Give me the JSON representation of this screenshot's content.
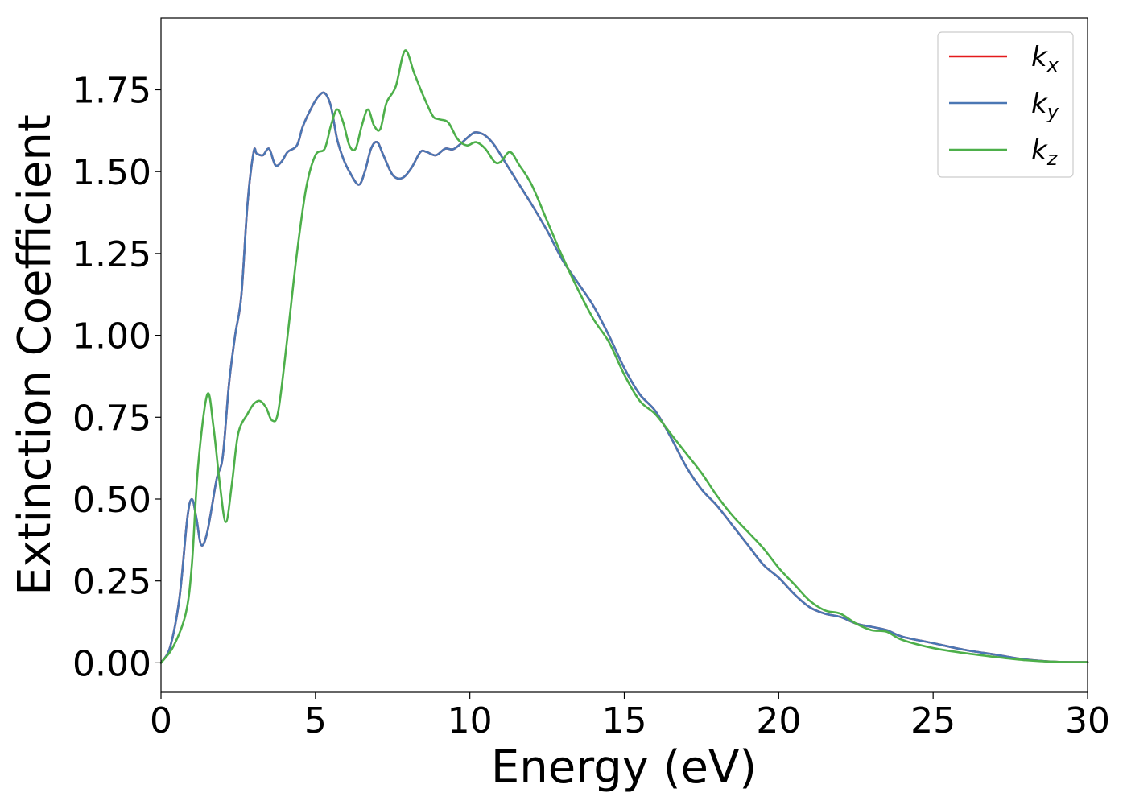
{
  "chart_data": {
    "type": "line",
    "title": "",
    "xlabel": "Energy (eV)",
    "ylabel": "Extinction Coefficient",
    "xlim": [
      0,
      30
    ],
    "ylim": [
      -0.09,
      1.97
    ],
    "xticks": [
      0,
      5,
      10,
      15,
      20,
      25,
      30
    ],
    "xtick_labels": [
      "0",
      "5",
      "10",
      "15",
      "20",
      "25",
      "30"
    ],
    "yticks": [
      0.0,
      0.25,
      0.5,
      0.75,
      1.0,
      1.25,
      1.5,
      1.75
    ],
    "ytick_labels": [
      "0.00",
      "0.25",
      "0.50",
      "0.75",
      "1.00",
      "1.25",
      "1.50",
      "1.75"
    ],
    "grid": false,
    "legend_position": "top-right",
    "series": [
      {
        "name": "k_x",
        "label_main": "k",
        "label_sub": "x",
        "color": "#e41a1c",
        "x": [
          0,
          0.3,
          0.6,
          0.85,
          1.0,
          1.15,
          1.3,
          1.5,
          1.8,
          2.0,
          2.2,
          2.4,
          2.6,
          2.8,
          3.0,
          3.1,
          3.3,
          3.5,
          3.7,
          3.9,
          4.1,
          4.4,
          4.6,
          4.9,
          5.1,
          5.3,
          5.5,
          5.7,
          5.9,
          6.1,
          6.4,
          6.6,
          6.8,
          7.0,
          7.2,
          7.5,
          7.8,
          8.1,
          8.4,
          8.6,
          8.9,
          9.2,
          9.5,
          10.0,
          10.2,
          10.5,
          10.8,
          11.2,
          11.6,
          12.0,
          12.5,
          13.0,
          13.5,
          14.0,
          14.5,
          15.0,
          15.5,
          16.0,
          16.5,
          17.0,
          17.5,
          18.0,
          18.5,
          19.0,
          19.5,
          20.0,
          20.5,
          21.0,
          21.5,
          22.0,
          22.5,
          23.0,
          23.5,
          24.0,
          25.0,
          26.0,
          27.0,
          28.0,
          29.0,
          30.0
        ],
        "y": [
          0.0,
          0.05,
          0.2,
          0.44,
          0.5,
          0.44,
          0.36,
          0.4,
          0.56,
          0.63,
          0.85,
          1.0,
          1.12,
          1.4,
          1.56,
          1.555,
          1.55,
          1.57,
          1.52,
          1.53,
          1.56,
          1.58,
          1.64,
          1.7,
          1.73,
          1.74,
          1.7,
          1.6,
          1.54,
          1.5,
          1.46,
          1.5,
          1.57,
          1.59,
          1.55,
          1.49,
          1.48,
          1.51,
          1.56,
          1.56,
          1.55,
          1.57,
          1.57,
          1.61,
          1.62,
          1.61,
          1.58,
          1.52,
          1.46,
          1.4,
          1.32,
          1.23,
          1.16,
          1.09,
          1.0,
          0.9,
          0.82,
          0.77,
          0.69,
          0.6,
          0.53,
          0.48,
          0.42,
          0.36,
          0.3,
          0.26,
          0.21,
          0.17,
          0.15,
          0.14,
          0.12,
          0.11,
          0.1,
          0.08,
          0.06,
          0.04,
          0.025,
          0.01,
          0.003,
          0.002
        ]
      },
      {
        "name": "k_y",
        "label_main": "k",
        "label_sub": "y",
        "color": "#4a77b4",
        "x": [
          0,
          0.3,
          0.6,
          0.85,
          1.0,
          1.15,
          1.3,
          1.5,
          1.8,
          2.0,
          2.2,
          2.4,
          2.6,
          2.8,
          3.0,
          3.1,
          3.3,
          3.5,
          3.7,
          3.9,
          4.1,
          4.4,
          4.6,
          4.9,
          5.1,
          5.3,
          5.5,
          5.7,
          5.9,
          6.1,
          6.4,
          6.6,
          6.8,
          7.0,
          7.2,
          7.5,
          7.8,
          8.1,
          8.4,
          8.6,
          8.9,
          9.2,
          9.5,
          10.0,
          10.2,
          10.5,
          10.8,
          11.2,
          11.6,
          12.0,
          12.5,
          13.0,
          13.5,
          14.0,
          14.5,
          15.0,
          15.5,
          16.0,
          16.5,
          17.0,
          17.5,
          18.0,
          18.5,
          19.0,
          19.5,
          20.0,
          20.5,
          21.0,
          21.5,
          22.0,
          22.5,
          23.0,
          23.5,
          24.0,
          25.0,
          26.0,
          27.0,
          28.0,
          29.0,
          30.0
        ],
        "y": [
          0.0,
          0.05,
          0.2,
          0.44,
          0.5,
          0.44,
          0.36,
          0.4,
          0.56,
          0.63,
          0.85,
          1.0,
          1.12,
          1.4,
          1.56,
          1.555,
          1.55,
          1.57,
          1.52,
          1.53,
          1.56,
          1.58,
          1.64,
          1.7,
          1.73,
          1.74,
          1.7,
          1.6,
          1.54,
          1.5,
          1.46,
          1.5,
          1.57,
          1.59,
          1.55,
          1.49,
          1.48,
          1.51,
          1.56,
          1.56,
          1.55,
          1.57,
          1.57,
          1.61,
          1.62,
          1.61,
          1.58,
          1.52,
          1.46,
          1.4,
          1.32,
          1.23,
          1.16,
          1.09,
          1.0,
          0.9,
          0.82,
          0.77,
          0.69,
          0.6,
          0.53,
          0.48,
          0.42,
          0.36,
          0.3,
          0.26,
          0.21,
          0.17,
          0.15,
          0.14,
          0.12,
          0.11,
          0.1,
          0.08,
          0.06,
          0.04,
          0.025,
          0.01,
          0.003,
          0.002
        ]
      },
      {
        "name": "k_z",
        "label_main": "k",
        "label_sub": "z",
        "color": "#4daf4a",
        "x": [
          0,
          0.4,
          0.8,
          1.0,
          1.2,
          1.5,
          1.7,
          1.9,
          2.1,
          2.3,
          2.5,
          2.8,
          3.0,
          3.2,
          3.4,
          3.6,
          3.8,
          4.1,
          4.4,
          4.7,
          5.0,
          5.3,
          5.5,
          5.7,
          5.9,
          6.1,
          6.3,
          6.5,
          6.7,
          6.9,
          7.1,
          7.3,
          7.6,
          7.9,
          8.2,
          8.5,
          8.8,
          9.0,
          9.3,
          9.6,
          9.9,
          10.2,
          10.5,
          10.8,
          11.0,
          11.3,
          11.6,
          12.0,
          12.5,
          13.0,
          13.5,
          14.0,
          14.5,
          15.0,
          15.5,
          16.0,
          16.5,
          17.0,
          17.5,
          18.0,
          18.5,
          19.0,
          19.5,
          20.0,
          20.5,
          21.0,
          21.5,
          22.0,
          22.5,
          23.0,
          23.5,
          24.0,
          25.0,
          26.0,
          27.0,
          28.0,
          29.0,
          30.0
        ],
        "y": [
          0.0,
          0.05,
          0.15,
          0.3,
          0.6,
          0.82,
          0.72,
          0.55,
          0.43,
          0.55,
          0.7,
          0.76,
          0.79,
          0.8,
          0.78,
          0.74,
          0.77,
          1.0,
          1.25,
          1.45,
          1.55,
          1.57,
          1.64,
          1.69,
          1.65,
          1.58,
          1.57,
          1.64,
          1.69,
          1.64,
          1.63,
          1.71,
          1.76,
          1.87,
          1.8,
          1.73,
          1.67,
          1.66,
          1.65,
          1.6,
          1.58,
          1.59,
          1.57,
          1.53,
          1.53,
          1.56,
          1.52,
          1.46,
          1.35,
          1.24,
          1.14,
          1.05,
          0.98,
          0.88,
          0.8,
          0.76,
          0.7,
          0.64,
          0.58,
          0.51,
          0.45,
          0.4,
          0.35,
          0.29,
          0.24,
          0.19,
          0.16,
          0.15,
          0.12,
          0.1,
          0.095,
          0.07,
          0.045,
          0.03,
          0.018,
          0.008,
          0.003,
          0.002
        ]
      }
    ]
  }
}
